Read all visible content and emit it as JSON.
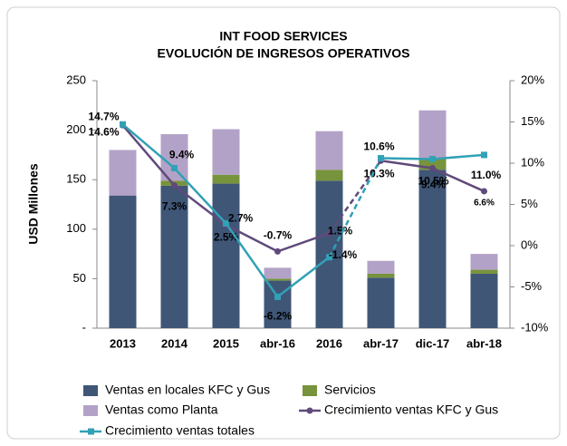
{
  "chart_data": {
    "type": "bar",
    "title": [
      "INT FOOD SERVICES",
      "EVOLUCIÓN DE INGRESOS OPERATIVOS"
    ],
    "y_label": "USD Millones",
    "categories": [
      "2013",
      "2014",
      "2015",
      "abr-16",
      "2016",
      "abr-17",
      "dic-17",
      "abr-18"
    ],
    "stacked": true,
    "series": [
      {
        "name": "Ventas en locales KFC y Gus",
        "color": "#3f5677",
        "values": [
          134,
          144,
          146,
          48,
          149,
          51,
          160,
          55
        ]
      },
      {
        "name": "Servicios",
        "color": "#77933c",
        "values": [
          0,
          5,
          9,
          2,
          11,
          4,
          12,
          4
        ]
      },
      {
        "name": "Ventas como Planta",
        "color": "#b3a2c7",
        "values": [
          46,
          47,
          46,
          11,
          39,
          13,
          48,
          16
        ]
      },
      {
        "name": "Crecimiento ventas KFC y Gus",
        "type": "line",
        "axis": "y2",
        "color": "#604a7b",
        "dashed_to": "abr-17",
        "values": [
          14.6,
          7.3,
          2.5,
          -0.7,
          1.5,
          10.3,
          9.4,
          6.6
        ],
        "value_labels": [
          "14.6%",
          "7.3%",
          "2.5%",
          "-0.7%",
          "1.5%",
          "10.3%",
          "9.4%",
          "6.6%"
        ]
      },
      {
        "name": "Crecimiento ventas totales",
        "type": "line",
        "axis": "y2",
        "color": "#31a1b6",
        "dashed_to": "abr-17",
        "values": [
          14.7,
          9.4,
          2.7,
          -6.2,
          -1.4,
          10.6,
          10.5,
          11.0
        ],
        "value_labels": [
          "14.7%",
          "9.4%",
          "2.7%",
          "-6.2%",
          "-1.4%",
          "10.6%",
          "10.5%",
          "11.0%"
        ]
      }
    ],
    "ylim": [
      0,
      250
    ],
    "yticks": [
      {
        "value": 0,
        "label": "-"
      },
      50,
      100,
      150,
      200,
      250
    ],
    "y2lim": [
      -10,
      20
    ],
    "y2ticks": [
      {
        "value": -10,
        "label": "-10%"
      },
      {
        "value": -5,
        "label": "-5%"
      },
      {
        "value": 0,
        "label": "0%"
      },
      {
        "value": 5,
        "label": "5%"
      },
      {
        "value": 10,
        "label": "10%"
      },
      {
        "value": 15,
        "label": "15%"
      },
      {
        "value": 20,
        "label": "20%"
      }
    ],
    "legend": "bottom"
  }
}
